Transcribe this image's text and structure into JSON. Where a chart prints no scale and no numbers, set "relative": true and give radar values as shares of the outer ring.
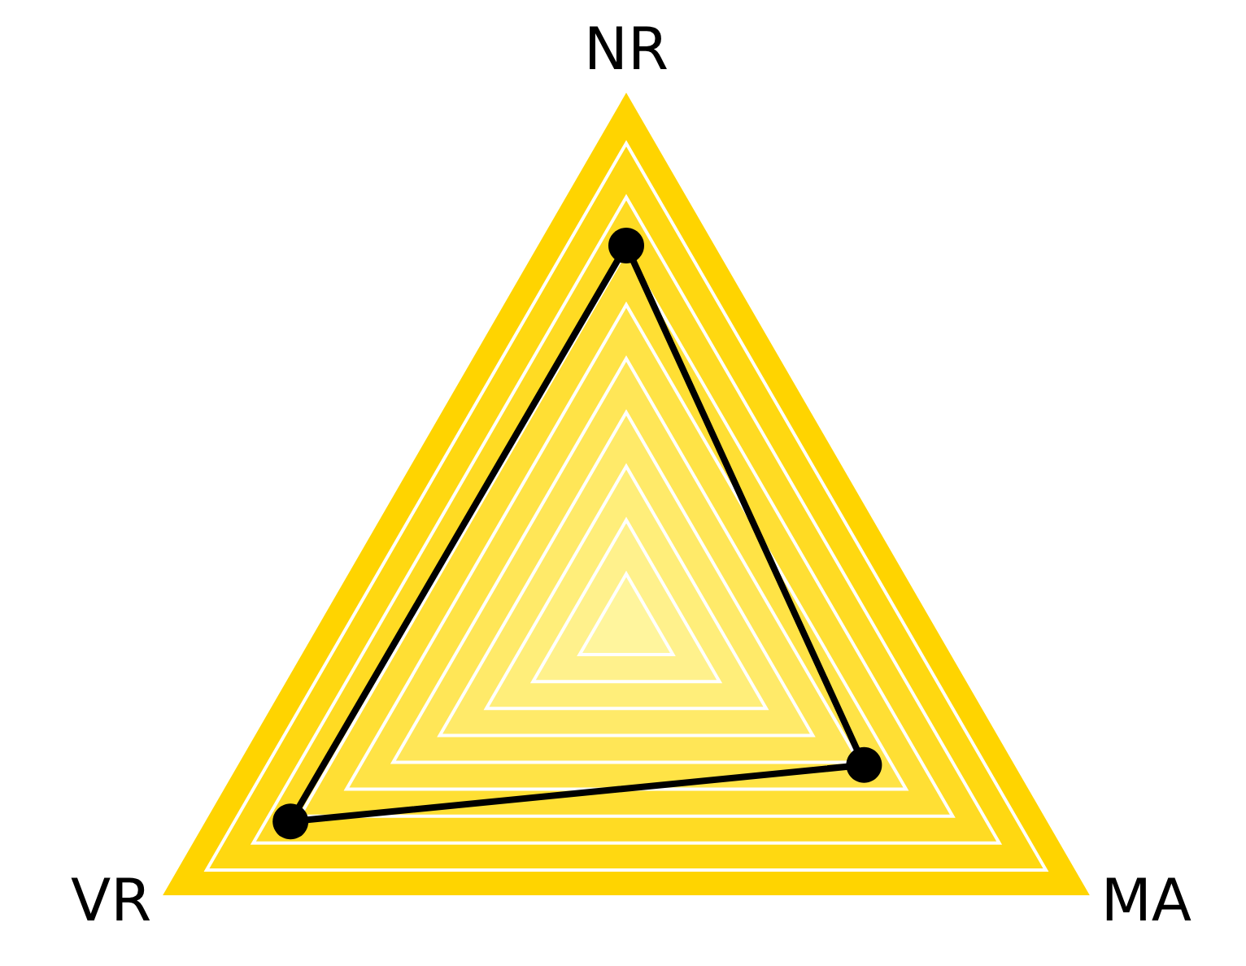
{
  "chart_data": {
    "type": "radar",
    "relative": true,
    "categories": [
      "NR",
      "MA",
      "VR"
    ],
    "series": [
      {
        "color": "#000000",
        "values": [
          0.71,
          0.51,
          0.72
        ]
      }
    ],
    "marker": "circle",
    "line_style": "solid",
    "grid": true
  }
}
